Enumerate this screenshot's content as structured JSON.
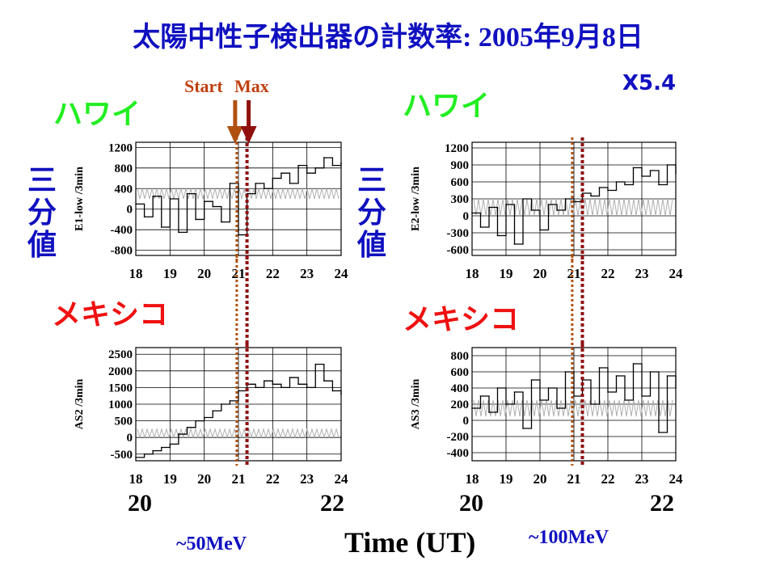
{
  "title_jp": "太陽中性子検出器の計数率",
  "title_date_sep": ": ",
  "title_year": "2005",
  "title_year_kanji": "年",
  "title_month": "9",
  "title_month_kanji": "月",
  "title_day": "8",
  "title_day_kanji": "日",
  "flare_class": "X5.4",
  "labels": {
    "hawaii": "ハワイ",
    "mexico": "メキシコ",
    "three_min_value": [
      "三",
      "分",
      "値"
    ],
    "start": "Start",
    "max": "Max",
    "time_axis": "Time (UT)",
    "energy_left": "~50MeV",
    "energy_right": "~100MeV",
    "big_x_ticks": [
      "20",
      "22",
      "20",
      "22"
    ]
  },
  "colors": {
    "title": "#1010c0",
    "hawaii": "#22ee22",
    "mexico": "#ee1111",
    "start_line": "#b05010",
    "max_line": "#901010",
    "data_line": "#000000",
    "background_band": "#b0b0b0"
  },
  "chart_data": [
    {
      "type": "line",
      "id": "hawaii-e1",
      "ylabel": "E1-low /3min",
      "xlim": [
        18,
        24
      ],
      "ylim": [
        -900,
        1300
      ],
      "x_ticks": [
        "18",
        "19",
        "20",
        "21",
        "22",
        "23",
        "24"
      ],
      "y_ticks": [
        1200,
        800,
        400,
        0,
        -400,
        -800
      ],
      "y_tick_labels": [
        "1200",
        "800",
        "400",
        "0",
        "-400",
        "-800"
      ],
      "start_time": 20.95,
      "max_time": 21.25,
      "band": [
        200,
        400
      ],
      "x": [
        18.0,
        18.25,
        18.5,
        18.75,
        19.0,
        19.25,
        19.5,
        19.75,
        20.0,
        20.25,
        20.5,
        20.75,
        21.0,
        21.25,
        21.5,
        21.75,
        22.0,
        22.25,
        22.5,
        22.75,
        23.0,
        23.25,
        23.5,
        23.75,
        24.0
      ],
      "y": [
        100,
        -150,
        250,
        -350,
        200,
        -450,
        300,
        -200,
        150,
        50,
        -250,
        500,
        -500,
        300,
        500,
        400,
        600,
        700,
        500,
        850,
        700,
        800,
        1000,
        850,
        900
      ]
    },
    {
      "type": "line",
      "id": "hawaii-e2",
      "ylabel": "E2-low /3min",
      "xlim": [
        18,
        24
      ],
      "ylim": [
        -700,
        1300
      ],
      "x_ticks": [
        "18",
        "19",
        "20",
        "21",
        "22",
        "23",
        "24"
      ],
      "y_ticks": [
        1200,
        900,
        600,
        300,
        0,
        -300,
        -600
      ],
      "y_tick_labels": [
        "1200",
        "900",
        "600",
        "300",
        "0",
        "-300",
        "-600"
      ],
      "start_time": 20.95,
      "max_time": 21.25,
      "band": [
        0,
        300
      ],
      "x": [
        18.0,
        18.25,
        18.5,
        18.75,
        19.0,
        19.25,
        19.5,
        19.75,
        20.0,
        20.25,
        20.5,
        20.75,
        21.0,
        21.25,
        21.5,
        21.75,
        22.0,
        22.25,
        22.5,
        22.75,
        23.0,
        23.25,
        23.5,
        23.75,
        24.0
      ],
      "y": [
        50,
        -200,
        150,
        -350,
        200,
        -500,
        300,
        100,
        -250,
        200,
        100,
        300,
        250,
        400,
        350,
        500,
        450,
        600,
        550,
        850,
        700,
        800,
        550,
        900,
        750
      ]
    },
    {
      "type": "line",
      "id": "mexico-as2",
      "ylabel": "AS2 /3min",
      "xlim": [
        18,
        24
      ],
      "ylim": [
        -700,
        2700
      ],
      "x_ticks": [
        "18",
        "19",
        "20",
        "21",
        "22",
        "23",
        "24"
      ],
      "y_ticks": [
        2500,
        2000,
        1500,
        1000,
        500,
        0,
        -500
      ],
      "y_tick_labels": [
        "2500",
        "2000",
        "1500",
        "1000",
        "500",
        "0",
        "-500"
      ],
      "start_time": 20.95,
      "max_time": 21.25,
      "band": [
        0,
        250
      ],
      "x": [
        18.0,
        18.25,
        18.5,
        18.75,
        19.0,
        19.25,
        19.5,
        19.75,
        20.0,
        20.25,
        20.5,
        20.75,
        21.0,
        21.25,
        21.5,
        21.75,
        22.0,
        22.25,
        22.5,
        22.75,
        23.0,
        23.25,
        23.5,
        23.75,
        24.0
      ],
      "y": [
        -600,
        -500,
        -400,
        -300,
        -200,
        100,
        300,
        500,
        600,
        800,
        1000,
        1100,
        1400,
        1600,
        1500,
        1700,
        1600,
        1500,
        1800,
        1600,
        1500,
        2200,
        1700,
        1400,
        1300
      ]
    },
    {
      "type": "line",
      "id": "mexico-as3",
      "ylabel": "AS3 /3min",
      "xlim": [
        18,
        24
      ],
      "ylim": [
        -500,
        900
      ],
      "x_ticks": [
        "18",
        "19",
        "20",
        "21",
        "22",
        "23",
        "24"
      ],
      "y_ticks": [
        800,
        600,
        400,
        200,
        0,
        -200,
        -400
      ],
      "y_tick_labels": [
        "800",
        "600",
        "400",
        "200",
        "0",
        "-200",
        "-400"
      ],
      "start_time": 20.95,
      "max_time": 21.25,
      "band": [
        50,
        250
      ],
      "x": [
        18.0,
        18.25,
        18.5,
        18.75,
        19.0,
        19.25,
        19.5,
        19.75,
        20.0,
        20.25,
        20.5,
        20.75,
        21.0,
        21.25,
        21.5,
        21.75,
        22.0,
        22.25,
        22.5,
        22.75,
        23.0,
        23.25,
        23.5,
        23.75,
        24.0
      ],
      "y": [
        150,
        300,
        100,
        400,
        200,
        350,
        -100,
        500,
        250,
        400,
        150,
        600,
        300,
        500,
        200,
        650,
        350,
        550,
        250,
        700,
        300,
        600,
        -150,
        550,
        400
      ]
    }
  ]
}
